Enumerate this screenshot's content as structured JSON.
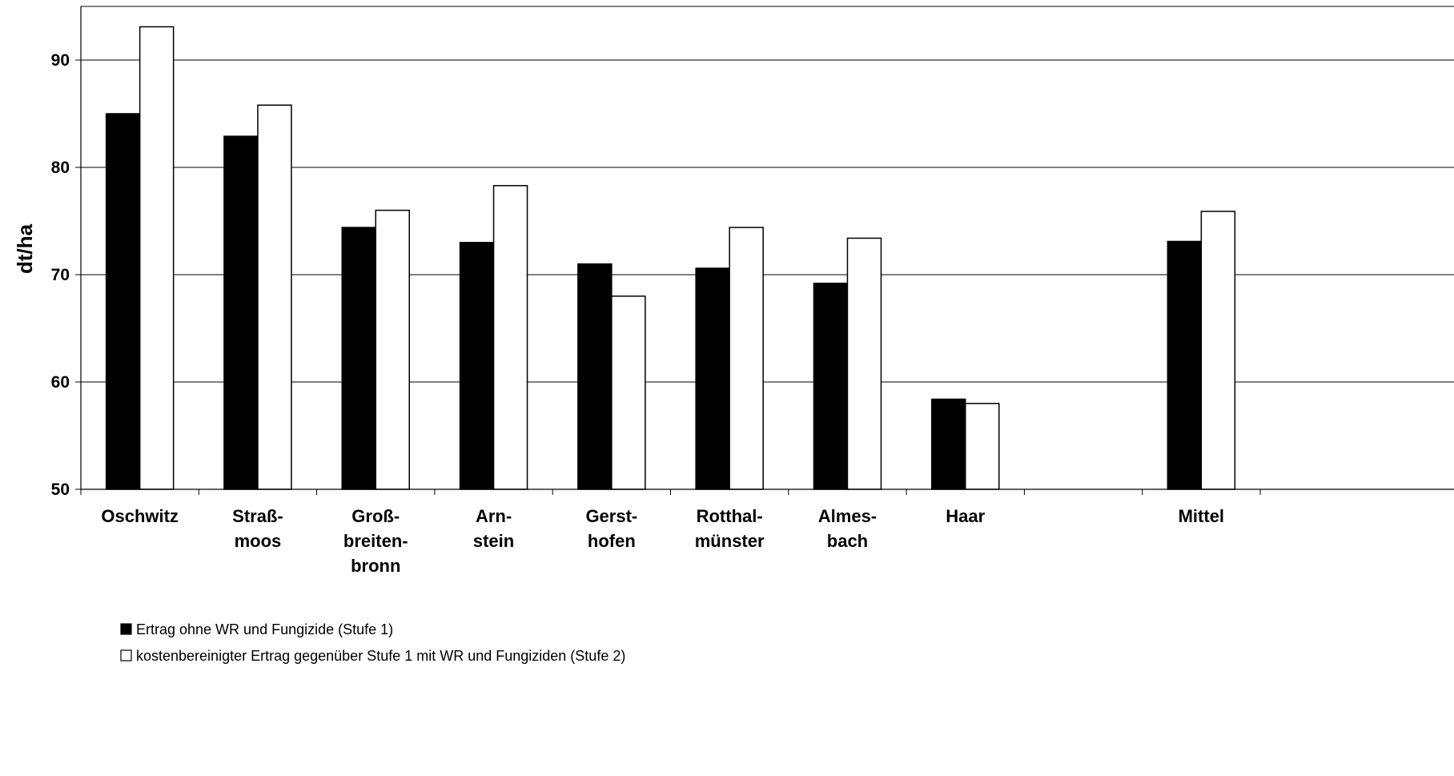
{
  "chart_data": {
    "type": "bar",
    "title": "",
    "xlabel": "",
    "ylabel": "dt/ha",
    "ylim": [
      50,
      95
    ],
    "yticks": [
      50,
      60,
      70,
      80,
      90
    ],
    "grid": true,
    "legend_position": "bottom-left",
    "categories": [
      [
        "Oschwitz"
      ],
      [
        "Straß-",
        "moos"
      ],
      [
        "Groß-",
        "breiten-",
        "bronn"
      ],
      [
        "Arn-",
        "stein"
      ],
      [
        "Gerst-",
        "hofen"
      ],
      [
        "Rotthal-",
        "münster"
      ],
      [
        "Almes-",
        "bach"
      ],
      [
        "Haar"
      ],
      [
        ""
      ],
      [
        "Mittel"
      ]
    ],
    "series": [
      {
        "name": "Ertrag ohne WR und Fungizide (Stufe 1)",
        "color": "#000000",
        "values": [
          85.0,
          82.9,
          74.4,
          73.0,
          71.0,
          70.6,
          69.2,
          58.4,
          null,
          73.1
        ]
      },
      {
        "name": "kostenbereinigter Ertrag gegenüber Stufe 1 mit WR und Fungiziden (Stufe 2)",
        "color": "#ffffff",
        "values": [
          93.1,
          85.8,
          76.0,
          78.3,
          68.0,
          74.4,
          73.4,
          58.0,
          null,
          75.9
        ]
      }
    ]
  }
}
